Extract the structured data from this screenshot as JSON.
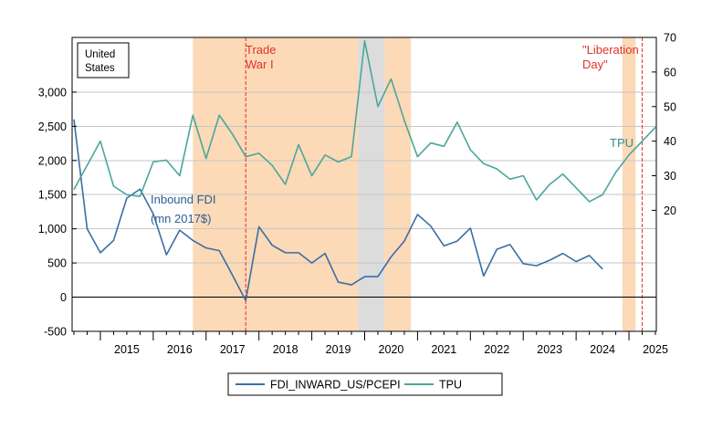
{
  "chart_data": {
    "type": "line",
    "country_box": [
      "United",
      "States"
    ],
    "annotations": {
      "trade_war": [
        "Trade",
        "War I"
      ],
      "liberation": [
        "\"Liberation",
        "Day\""
      ],
      "fdi_label": [
        "Inbound FDI",
        "(mn 2017$)"
      ],
      "tpu_label": "TPU"
    },
    "colors": {
      "fdi": "#3a6ea5",
      "tpu": "#4aa79c",
      "shade": "#fcd9b7",
      "recession": "#dcdcdc",
      "event_line": "#e0312b",
      "event_text": "#e0312b"
    },
    "x_range": [
      2014.5,
      2025.5
    ],
    "left_axis": {
      "ylim": [
        -500,
        3800
      ],
      "ticks": [
        -500,
        0,
        500,
        1000,
        1500,
        2000,
        2500,
        3000
      ],
      "tick_labels": [
        "-500",
        "0",
        "500",
        "1,000",
        "1,500",
        "2,000",
        "2,500",
        "3,000"
      ]
    },
    "right_axis": {
      "ylim": [
        -15,
        70
      ],
      "ticks": [
        20,
        30,
        40,
        50,
        60,
        70
      ],
      "tick_labels": [
        "20",
        "30",
        "40",
        "50",
        "60",
        "70"
      ]
    },
    "years": [
      "2015",
      "2016",
      "2017",
      "2018",
      "2019",
      "2020",
      "2021",
      "2022",
      "2023",
      "2024",
      "2025"
    ],
    "shaded_periods": [
      [
        2016.75,
        2019.875
      ],
      [
        2020.375,
        2020.875
      ],
      [
        2024.875,
        2025.125
      ]
    ],
    "recession_period": [
      2019.875,
      2020.375
    ],
    "event_lines": [
      2017.75,
      2025.25
    ],
    "series": [
      {
        "name": "FDI_INWARD_US/PCEPI",
        "x": [
          2014.5,
          2014.75,
          2015.0,
          2015.25,
          2015.5,
          2015.75,
          2016.0,
          2016.25,
          2016.5,
          2016.75,
          2017.0,
          2017.25,
          2017.5,
          2017.75,
          2018.0,
          2018.25,
          2018.5,
          2018.75,
          2019.0,
          2019.25,
          2019.5,
          2019.75,
          2020.0,
          2020.25,
          2020.5,
          2020.75,
          2021.0,
          2021.25,
          2021.5,
          2021.75,
          2022.0,
          2022.25,
          2022.5,
          2022.75,
          2023.0,
          2023.25,
          2023.5,
          2023.75,
          2024.0,
          2024.25,
          2024.5,
          2024.75
        ],
        "values": [
          2600,
          1000,
          650,
          830,
          1450,
          1580,
          1220,
          620,
          980,
          830,
          720,
          680,
          320,
          -50,
          1030,
          760,
          650,
          650,
          500,
          640,
          220,
          180,
          300,
          300,
          590,
          820,
          1210,
          1040,
          750,
          820,
          1010,
          310,
          700,
          770,
          490,
          460,
          540,
          640,
          520,
          610,
          410,
          null
        ]
      },
      {
        "name": "TPU",
        "x": [
          2014.5,
          2014.75,
          2015.0,
          2015.25,
          2015.5,
          2015.75,
          2016.0,
          2016.25,
          2016.5,
          2016.75,
          2017.0,
          2017.25,
          2017.5,
          2017.75,
          2018.0,
          2018.25,
          2018.5,
          2018.75,
          2019.0,
          2019.25,
          2019.5,
          2019.75,
          2020.0,
          2020.25,
          2020.5,
          2020.75,
          2021.0,
          2021.25,
          2021.5,
          2021.75,
          2022.0,
          2022.25,
          2022.5,
          2022.75,
          2023.0,
          2023.25,
          2023.5,
          2023.75,
          2024.0,
          2024.25,
          2024.5,
          2024.75,
          2025.0,
          2025.25,
          2025.5
        ],
        "values": [
          26,
          33,
          40,
          27,
          24.5,
          24,
          34,
          34.5,
          30,
          47.5,
          35,
          47.5,
          42,
          35.5,
          36.5,
          33,
          27.5,
          39,
          30,
          36,
          34,
          35.5,
          69,
          50,
          58,
          46,
          35.5,
          39.5,
          38.5,
          45.5,
          37.5,
          33.5,
          32,
          29,
          30,
          23,
          27.5,
          30.5,
          26.5,
          22.5,
          24.5,
          31,
          36,
          40,
          44
        ]
      }
    ],
    "legend": [
      "FDI_INWARD_US/PCEPI",
      "TPU"
    ]
  }
}
